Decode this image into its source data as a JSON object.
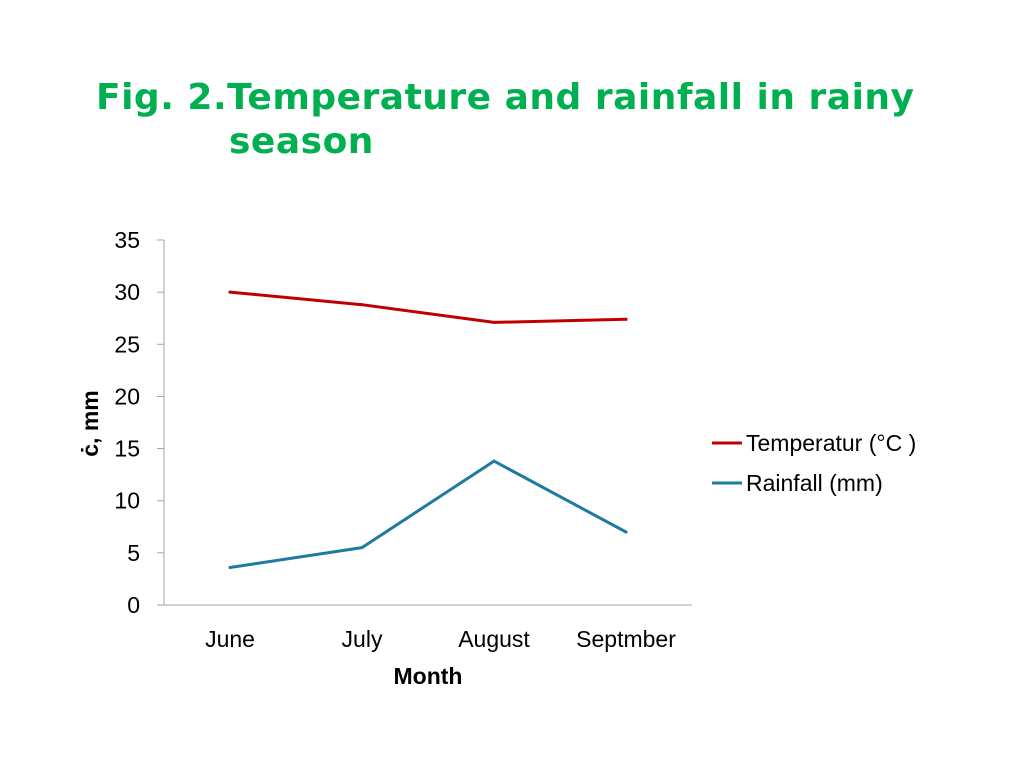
{
  "title": {
    "line1": "Fig. 2.Temperature and rainfall in rainy",
    "line2": "season"
  },
  "colors": {
    "title": "#00b050",
    "temperature": "#c00000",
    "rainfall": "#1f7aa0",
    "axis": "#a6a6a6"
  },
  "chart_data": {
    "type": "line",
    "categories": [
      "June",
      "July",
      "August",
      "Septmber"
    ],
    "series": [
      {
        "name": "Temperatur (°C )",
        "values": [
          30.0,
          28.8,
          27.1,
          27.4
        ],
        "color": "#c00000"
      },
      {
        "name": "Rainfall (mm)",
        "values": [
          3.6,
          5.5,
          13.8,
          7.0
        ],
        "color": "#1f7aa0"
      }
    ],
    "xlabel": "Month",
    "ylabel": "ċ, mm",
    "ylim": [
      0,
      35
    ],
    "yticks": [
      "0",
      "5",
      "10",
      "15",
      "20",
      "25",
      "30",
      "35"
    ],
    "grid": false,
    "legend_position": "right"
  }
}
